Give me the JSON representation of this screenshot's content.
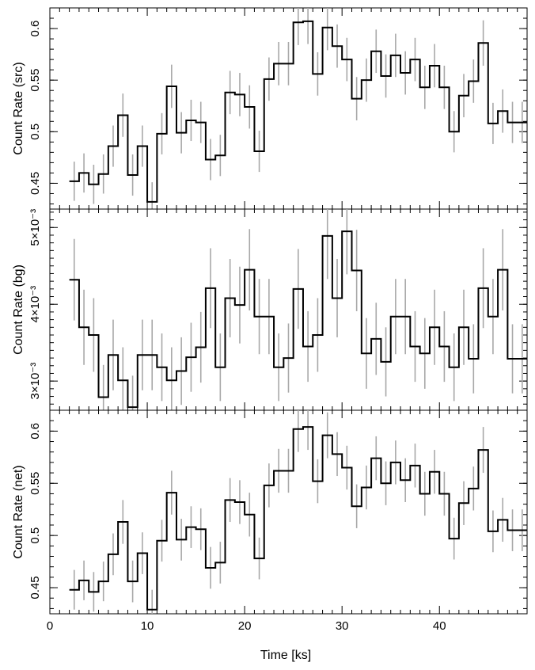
{
  "chart_data": [
    {
      "type": "line",
      "ylabel": "Count Rate (src)",
      "ylim": [
        0.425,
        0.62
      ],
      "xlim": [
        0,
        49
      ],
      "yticks": [
        {
          "value": 0.45,
          "label": "0.45"
        },
        {
          "value": 0.5,
          "label": "0.5"
        },
        {
          "value": 0.55,
          "label": "0.55"
        },
        {
          "value": 0.6,
          "label": "0.6"
        }
      ],
      "step_ks": 1.0,
      "x": [
        2.5,
        3.5,
        4.5,
        5.5,
        6.5,
        7.5,
        8.5,
        9.5,
        10.5,
        11.5,
        12.5,
        13.5,
        14.5,
        15.5,
        16.5,
        17.5,
        18.5,
        19.5,
        20.5,
        21.5,
        22.5,
        23.5,
        24.5,
        25.5,
        26.5,
        27.5,
        28.5,
        29.5,
        30.5,
        31.5,
        32.5,
        33.5,
        34.5,
        35.5,
        36.5,
        37.5,
        38.5,
        39.5,
        40.5,
        41.5,
        42.5,
        43.5,
        44.5,
        45.5,
        46.5,
        47.5,
        48.5
      ],
      "values": [
        0.452,
        0.46,
        0.449,
        0.459,
        0.486,
        0.516,
        0.458,
        0.486,
        0.432,
        0.498,
        0.544,
        0.499,
        0.511,
        0.509,
        0.473,
        0.477,
        0.538,
        0.536,
        0.524,
        0.481,
        0.551,
        0.566,
        0.566,
        0.606,
        0.607,
        0.556,
        0.601,
        0.583,
        0.57,
        0.532,
        0.55,
        0.578,
        0.554,
        0.574,
        0.557,
        0.57,
        0.543,
        0.564,
        0.543,
        0.5,
        0.535,
        0.549,
        0.586,
        0.508,
        0.52,
        0.509,
        0.509
      ],
      "errors": [
        0.019,
        0.019,
        0.019,
        0.019,
        0.02,
        0.021,
        0.02,
        0.02,
        0.019,
        0.02,
        0.021,
        0.02,
        0.02,
        0.02,
        0.02,
        0.02,
        0.021,
        0.021,
        0.021,
        0.02,
        0.021,
        0.021,
        0.021,
        0.022,
        0.022,
        0.021,
        0.022,
        0.021,
        0.021,
        0.021,
        0.021,
        0.021,
        0.021,
        0.021,
        0.021,
        0.021,
        0.021,
        0.021,
        0.021,
        0.02,
        0.021,
        0.021,
        0.022,
        0.02,
        0.021,
        0.02,
        0.02
      ]
    },
    {
      "type": "line",
      "ylabel": "Count Rate (bg)",
      "ylim": [
        0.00262,
        0.00524
      ],
      "xlim": [
        0,
        49
      ],
      "yticks": [
        {
          "value": 0.003,
          "label": "3×10⁻³"
        },
        {
          "value": 0.004,
          "label": "4×10⁻³"
        },
        {
          "value": 0.005,
          "label": "5×10⁻³"
        }
      ],
      "step_ks": 1.0,
      "x": [
        2.5,
        3.5,
        4.5,
        5.5,
        6.5,
        7.5,
        8.5,
        9.5,
        10.5,
        11.5,
        12.5,
        13.5,
        14.5,
        15.5,
        16.5,
        17.5,
        18.5,
        19.5,
        20.5,
        21.5,
        22.5,
        23.5,
        24.5,
        25.5,
        26.5,
        27.5,
        28.5,
        29.5,
        30.5,
        31.5,
        32.5,
        33.5,
        34.5,
        35.5,
        36.5,
        37.5,
        38.5,
        39.5,
        40.5,
        41.5,
        42.5,
        43.5,
        44.5,
        45.5,
        46.5,
        47.5,
        48.5
      ],
      "values": [
        0.00432,
        0.0037,
        0.0036,
        0.00279,
        0.00334,
        0.00301,
        0.00266,
        0.00334,
        0.00334,
        0.00318,
        0.00301,
        0.00313,
        0.00331,
        0.00344,
        0.00421,
        0.00318,
        0.00408,
        0.00399,
        0.00445,
        0.00384,
        0.00384,
        0.00318,
        0.0033,
        0.0042,
        0.00345,
        0.0036,
        0.00489,
        0.00408,
        0.00495,
        0.00444,
        0.00336,
        0.00355,
        0.00325,
        0.00384,
        0.00384,
        0.00345,
        0.00336,
        0.0037,
        0.00345,
        0.00318,
        0.0037,
        0.00329,
        0.00421,
        0.00384,
        0.00445,
        0.00329,
        0.00329
      ],
      "errors": [
        0.00053,
        0.00049,
        0.00048,
        0.00042,
        0.00046,
        0.00043,
        0.00041,
        0.00046,
        0.00046,
        0.00044,
        0.00043,
        0.00044,
        0.00045,
        0.00046,
        0.00052,
        0.00044,
        0.00051,
        0.0005,
        0.00053,
        0.00049,
        0.00049,
        0.00044,
        0.00045,
        0.00052,
        0.00046,
        0.00048,
        0.00056,
        0.00051,
        0.00056,
        0.00053,
        0.00046,
        0.00047,
        0.00045,
        0.00049,
        0.00049,
        0.00046,
        0.00046,
        0.00049,
        0.00046,
        0.00044,
        0.00049,
        0.00045,
        0.00052,
        0.00049,
        0.00053,
        0.00045,
        0.00045
      ]
    },
    {
      "type": "line",
      "ylabel": "Count Rate (net)",
      "ylim": [
        0.425,
        0.62
      ],
      "xlim": [
        0,
        49
      ],
      "xlabel": "Time [ks]",
      "xticks": [
        {
          "value": 0,
          "label": "0"
        },
        {
          "value": 10,
          "label": "10"
        },
        {
          "value": 20,
          "label": "20"
        },
        {
          "value": 30,
          "label": "30"
        },
        {
          "value": 40,
          "label": "40"
        }
      ],
      "yticks": [
        {
          "value": 0.45,
          "label": "0.45"
        },
        {
          "value": 0.5,
          "label": "0.5"
        },
        {
          "value": 0.55,
          "label": "0.55"
        },
        {
          "value": 0.6,
          "label": "0.6"
        }
      ],
      "step_ks": 1.0,
      "x": [
        2.5,
        3.5,
        4.5,
        5.5,
        6.5,
        7.5,
        8.5,
        9.5,
        10.5,
        11.5,
        12.5,
        13.5,
        14.5,
        15.5,
        16.5,
        17.5,
        18.5,
        19.5,
        20.5,
        21.5,
        22.5,
        23.5,
        24.5,
        25.5,
        26.5,
        27.5,
        28.5,
        29.5,
        30.5,
        31.5,
        32.5,
        33.5,
        34.5,
        35.5,
        36.5,
        37.5,
        38.5,
        39.5,
        40.5,
        41.5,
        42.5,
        43.5,
        44.5,
        45.5,
        46.5,
        47.5,
        48.5
      ],
      "values": [
        0.448,
        0.457,
        0.446,
        0.456,
        0.482,
        0.513,
        0.456,
        0.483,
        0.429,
        0.495,
        0.541,
        0.496,
        0.508,
        0.506,
        0.469,
        0.474,
        0.534,
        0.532,
        0.52,
        0.478,
        0.548,
        0.562,
        0.562,
        0.602,
        0.604,
        0.552,
        0.596,
        0.578,
        0.565,
        0.528,
        0.546,
        0.574,
        0.55,
        0.57,
        0.553,
        0.567,
        0.54,
        0.561,
        0.54,
        0.497,
        0.531,
        0.545,
        0.582,
        0.504,
        0.515,
        0.505,
        0.505
      ],
      "errors": [
        0.019,
        0.019,
        0.019,
        0.019,
        0.02,
        0.021,
        0.02,
        0.02,
        0.019,
        0.02,
        0.021,
        0.02,
        0.02,
        0.02,
        0.02,
        0.02,
        0.021,
        0.021,
        0.021,
        0.02,
        0.021,
        0.021,
        0.021,
        0.022,
        0.022,
        0.021,
        0.022,
        0.021,
        0.021,
        0.021,
        0.021,
        0.021,
        0.021,
        0.021,
        0.021,
        0.021,
        0.021,
        0.021,
        0.021,
        0.02,
        0.021,
        0.021,
        0.022,
        0.02,
        0.021,
        0.02,
        0.02
      ]
    }
  ]
}
